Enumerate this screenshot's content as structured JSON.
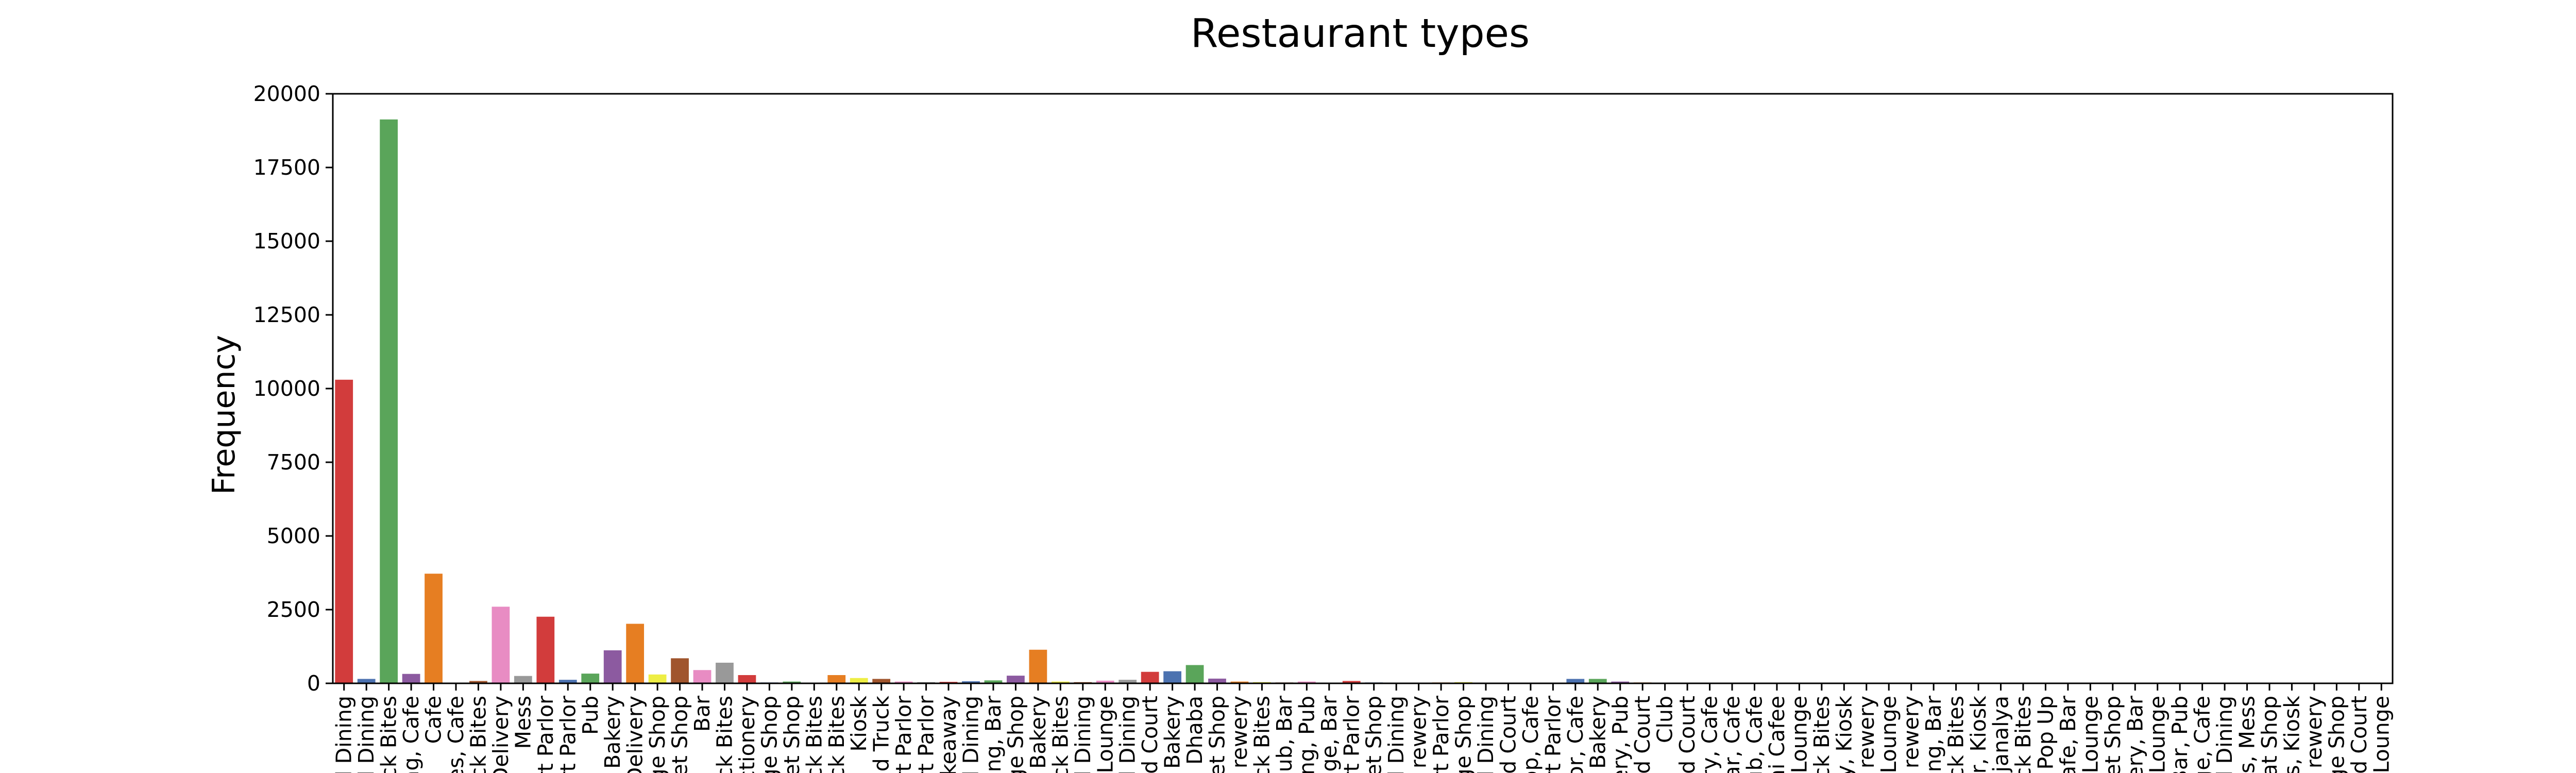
{
  "chart_data": {
    "type": "bar",
    "title": "Restaurant types",
    "xlabel": "",
    "ylabel": "Frequency",
    "ylim": [
      0,
      20000
    ],
    "yticks": [
      0,
      2500,
      5000,
      7500,
      10000,
      12500,
      15000,
      17500,
      20000
    ],
    "grid": false,
    "categories": [
      "l Dining",
      "l Dining",
      "ck Bites",
      "ng, Cafe",
      "Cafe",
      "es, Cafe",
      "ck Bites",
      "Delivery",
      "Mess",
      "rt Parlor",
      "rt Parlor",
      "Pub",
      "Bakery",
      "Delivery",
      "ge Shop",
      "et Shop",
      "Bar",
      "ck Bites",
      "ctionery",
      "ge Shop",
      "et Shop",
      "ck Bites",
      "ck Bites",
      "Kiosk",
      "d Truck",
      "rt Parlor",
      "rt Parlor",
      "keaway",
      "l Dining",
      "ng, Bar",
      "ge Shop",
      "Bakery",
      "ck Bites",
      "l Dining",
      "Lounge",
      "l Dining",
      "d Court",
      "Bakery",
      "Dhaba",
      "et Shop",
      "rewery",
      "ck Bites",
      "ub, Bar",
      "ng, Pub",
      "ge, Bar",
      "rt Parlor",
      "et Shop",
      "l Dining",
      "rewery",
      "rt Parlor",
      "ge Shop",
      "l Dining",
      "d Court",
      "op, Cafe",
      "rt Parlor",
      "or, Cafe",
      "Bakery",
      "ery, Pub",
      "d Court",
      "Club",
      "d Court",
      "ry, Cafe",
      "ar, Cafe",
      "ub, Cafe",
      "ni Cafee",
      "Lounge",
      "ck Bites",
      "y, Kiosk",
      "rewery",
      "Lounge",
      "rewery",
      "ng, Bar",
      "ck Bites",
      "r, Kiosk",
      "ajanalya",
      "ck Bites",
      "Pop Up",
      "afe, Bar",
      "Lounge",
      "et Shop",
      "ery, Bar",
      "Lounge",
      "Bar, Pub",
      "ge, Cafe",
      "l Dining",
      "s, Mess",
      "at Shop",
      "s, Kiosk",
      "rewery",
      "ge Shop",
      "d Court",
      "Lounge"
    ],
    "values": [
      10300,
      150,
      19130,
      320,
      3720,
      20,
      80,
      2600,
      250,
      2260,
      120,
      330,
      1120,
      2020,
      300,
      850,
      450,
      700,
      280,
      30,
      60,
      20,
      280,
      180,
      150,
      60,
      40,
      50,
      70,
      100,
      260,
      1140,
      60,
      40,
      90,
      120,
      390,
      410,
      620,
      160,
      60,
      40,
      30,
      60,
      20,
      80,
      30,
      20,
      20,
      30,
      40,
      20,
      20,
      20,
      20,
      150,
      150,
      60,
      30,
      20,
      20,
      20,
      20,
      20,
      20,
      20,
      20,
      20,
      20,
      20,
      20,
      20,
      20,
      20,
      20,
      20,
      20,
      20,
      20,
      20,
      20,
      20,
      20,
      20,
      20,
      20,
      20,
      20,
      20,
      20,
      20,
      20
    ],
    "colors": [
      "#d23c3c",
      "#4c72b0",
      "#5aa55a",
      "#8c5aa0",
      "#e67e22",
      "#c8aa3c",
      "#a0552d",
      "#e88cc3",
      "#999999",
      "#d23c3c",
      "#4c72b0",
      "#5aa55a",
      "#8c5aa0",
      "#e67e22",
      "#eeee44",
      "#a0552d",
      "#e88cc3",
      "#999999",
      "#d23c3c",
      "#4c72b0",
      "#5aa55a",
      "#8c5aa0",
      "#e67e22",
      "#eeee44",
      "#a0552d",
      "#e88cc3",
      "#999999",
      "#d23c3c",
      "#4c72b0",
      "#5aa55a",
      "#8c5aa0",
      "#e67e22",
      "#eeee44",
      "#a0552d",
      "#e88cc3",
      "#999999",
      "#d23c3c",
      "#4c72b0",
      "#5aa55a",
      "#8c5aa0",
      "#e67e22",
      "#eeee44",
      "#a0552d",
      "#e88cc3",
      "#999999",
      "#d23c3c",
      "#4c72b0",
      "#5aa55a",
      "#8c5aa0",
      "#e67e22",
      "#eeee44",
      "#a0552d",
      "#e88cc3",
      "#999999",
      "#d23c3c",
      "#4c72b0",
      "#5aa55a",
      "#8c5aa0",
      "#e67e22",
      "#eeee44",
      "#a0552d",
      "#e88cc3",
      "#999999",
      "#d23c3c",
      "#4c72b0",
      "#5aa55a",
      "#8c5aa0",
      "#e67e22",
      "#eeee44",
      "#a0552d",
      "#e88cc3",
      "#999999",
      "#d23c3c",
      "#4c72b0",
      "#5aa55a",
      "#8c5aa0",
      "#e67e22",
      "#eeee44",
      "#a0552d",
      "#e88cc3",
      "#999999",
      "#d23c3c",
      "#4c72b0",
      "#5aa55a",
      "#8c5aa0",
      "#e67e22",
      "#eeee44",
      "#a0552d",
      "#e88cc3",
      "#999999",
      "#d23c3c",
      "#4c72b0"
    ]
  }
}
